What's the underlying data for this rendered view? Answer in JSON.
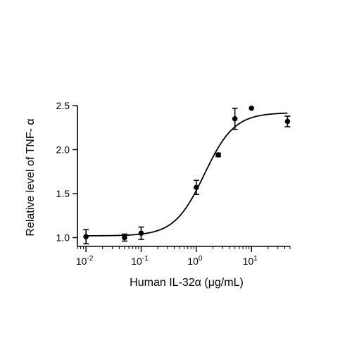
{
  "chart_data": {
    "type": "scatter",
    "title": "",
    "xlabel": "Human IL-32α (μg/mL)",
    "ylabel": "Relative level of TNF- α",
    "x_scale": "log",
    "xlim": [
      0.007,
      50
    ],
    "ylim": [
      0.9,
      2.5
    ],
    "x_ticks": [
      {
        "value": 0.01,
        "base": "10",
        "exp": "-2"
      },
      {
        "value": 0.1,
        "base": "10",
        "exp": "-1"
      },
      {
        "value": 1,
        "base": "10",
        "exp": "0"
      },
      {
        "value": 10,
        "base": "10",
        "exp": "1"
      }
    ],
    "y_ticks": [
      {
        "value": 1.0,
        "label": "1.0"
      },
      {
        "value": 1.5,
        "label": "1.5"
      },
      {
        "value": 2.0,
        "label": "2.0"
      },
      {
        "value": 2.5,
        "label": "2.5"
      }
    ],
    "points": [
      {
        "x": 0.01,
        "y": 1.01,
        "err": 0.08
      },
      {
        "x": 0.05,
        "y": 1.0,
        "err": 0.04
      },
      {
        "x": 0.1,
        "y": 1.05,
        "err": 0.07
      },
      {
        "x": 1.0,
        "y": 1.57,
        "err": 0.08
      },
      {
        "x": 2.5,
        "y": 1.94,
        "err": 0.02
      },
      {
        "x": 5.0,
        "y": 2.35,
        "err": 0.12
      },
      {
        "x": 10.0,
        "y": 2.47,
        "err": 0
      },
      {
        "x": 45.0,
        "y": 2.32,
        "err": 0.06
      }
    ],
    "fit_curve": {
      "bottom": 1.02,
      "top": 2.42,
      "ec50": 1.4,
      "hill": 1.6
    },
    "grid": false,
    "legend": "none"
  }
}
